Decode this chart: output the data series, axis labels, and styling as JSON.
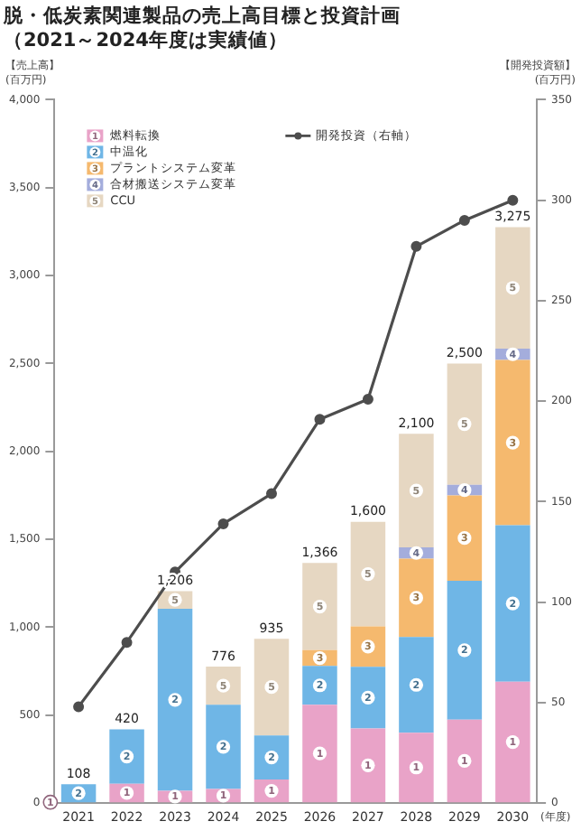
{
  "chart_data": {
    "type": "bar",
    "title": "脱・低炭素関連製品の売上高目標と投資計画",
    "subtitle": "（2021～2024年度は実績値）",
    "ylabel": "【売上高】\n(百万円)",
    "y2label": "【開発投資額】\n(百万円)",
    "xlabel": "(年度)",
    "categories": [
      "2021",
      "2022",
      "2023",
      "2024",
      "2025",
      "2026",
      "2027",
      "2028",
      "2029",
      "2030"
    ],
    "stacked": true,
    "legend": "top left",
    "grid": false,
    "ylim": [
      0,
      4000
    ],
    "yticks": [
      0,
      500,
      {
        "value": 1000,
        "label": "1,000"
      },
      {
        "value": 1500,
        "label": "1,500"
      },
      {
        "value": 2000,
        "label": "2,000"
      },
      {
        "value": 2500,
        "label": "2,500"
      },
      {
        "value": 3000,
        "label": "3,000"
      },
      {
        "value": 3500,
        "label": "3,500"
      },
      {
        "value": 4000,
        "label": "4,000"
      }
    ],
    "y2lim": [
      0,
      350
    ],
    "y2ticks": [
      0,
      50,
      100,
      150,
      200,
      250,
      300,
      350
    ],
    "series": [
      {
        "name": "燃料転換",
        "color": "#e9a3c8",
        "values": [
          5,
          110,
          70,
          80,
          135,
          560,
          425,
          400,
          475,
          690
        ]
      },
      {
        "name": "中温化",
        "color": "#6fb6e6",
        "values": [
          103,
          310,
          1035,
          480,
          250,
          220,
          350,
          545,
          790,
          890
        ]
      },
      {
        "name": "プラントシステム変革",
        "color": "#f5b96e",
        "values": [
          null,
          null,
          null,
          null,
          null,
          90,
          230,
          445,
          485,
          940
        ]
      },
      {
        "name": "合材搬送システム変革",
        "color": "#a4addc",
        "values": [
          null,
          null,
          null,
          null,
          null,
          null,
          null,
          65,
          60,
          65
        ]
      },
      {
        "name": "CCU",
        "color": "#e6d7c2",
        "values": [
          null,
          null,
          101,
          216,
          550,
          496,
          595,
          645,
          690,
          690
        ]
      },
      {
        "name": "開発投資（右軸）",
        "type": "line",
        "axis": "y2",
        "color": "#4d4d4d",
        "marker": "circle",
        "values": [
          48,
          80,
          115,
          139,
          154,
          191,
          201,
          277,
          290,
          300
        ]
      }
    ],
    "annotations": [
      "1",
      "2",
      "3",
      "4",
      "5"
    ],
    "totals": [
      "108",
      "420",
      "1,206",
      "776",
      "935",
      "1,366",
      "1,600",
      "2,100",
      "2,500",
      "3,275"
    ]
  }
}
